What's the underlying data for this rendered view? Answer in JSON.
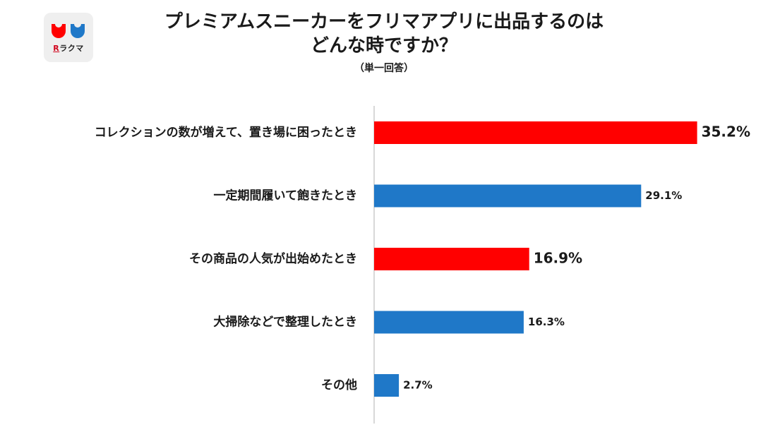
{
  "logo": {
    "brand_mark": "R",
    "brand_name": "ラクマ"
  },
  "title": "プレミアムスニーカーをフリマアプリに出品するのは\nどんな時ですか？",
  "subtitle": "（単一回答）",
  "colors": {
    "red": "#ff0000",
    "blue": "#1f78c8",
    "axis": "#cccccc"
  },
  "chart_data": {
    "type": "bar",
    "orientation": "horizontal",
    "categories": [
      "コレクションの数が増えて、置き場に困ったとき",
      "一定期間履いて飽きたとき",
      "その商品の人気が出始めたとき",
      "大掃除などで整理したとき",
      "その他"
    ],
    "values": [
      35.2,
      29.1,
      16.9,
      16.3,
      2.7
    ],
    "value_labels": [
      "35.2%",
      "29.1%",
      "16.9%",
      "16.3%",
      "2.7%"
    ],
    "bar_colors": [
      "red",
      "blue",
      "red",
      "blue",
      "blue"
    ],
    "highlighted": [
      true,
      false,
      true,
      false,
      false
    ],
    "unit": "%",
    "xlim": [
      0,
      36
    ],
    "grid": false,
    "legend": "none"
  }
}
